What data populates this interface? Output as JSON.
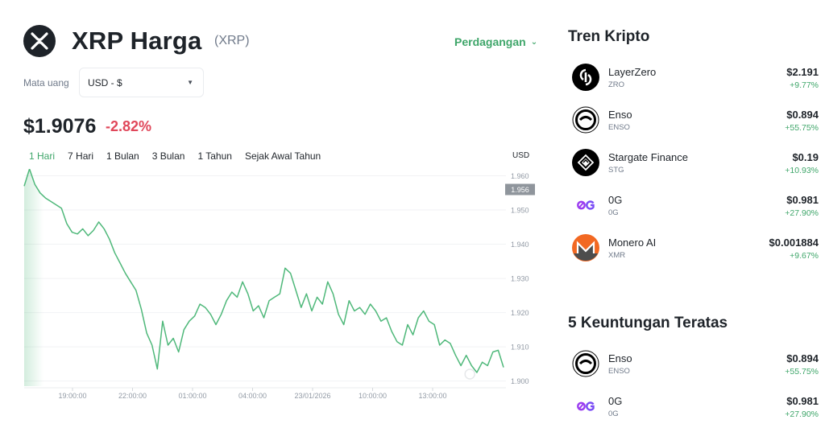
{
  "coin": {
    "name": "XRP Harga",
    "symbol": "(XRP)",
    "trade_label": "Perdagangan",
    "currency_label": "Mata uang",
    "currency_value": "USD - $",
    "price": "$1.9076",
    "change": "-2.82%"
  },
  "tabs": [
    "1 Hari",
    "7 Hari",
    "1 Bulan",
    "3 Bulan",
    "1 Tahun",
    "Sejak Awal Tahun"
  ],
  "active_tab": 0,
  "chart_unit": "USD",
  "chart_data": {
    "type": "line",
    "title": "",
    "xlabel": "",
    "ylabel": "",
    "x_ticks": [
      "19:00:00",
      "22:00:00",
      "01:00:00",
      "04:00:00",
      "23/01/2026",
      "10:00:00",
      "13:00:00"
    ],
    "y_ticks": [
      1.96,
      1.95,
      1.94,
      1.93,
      1.92,
      1.91,
      1.9
    ],
    "y_tick_labels": [
      "1.960",
      "1.950",
      "1.940",
      "1.930",
      "1.920",
      "1.910",
      "1.900"
    ],
    "ylim": [
      1.8985,
      1.962
    ],
    "current_value_label": "1.956",
    "current_value": 1.956,
    "grid": true,
    "line_color": "#4fb87a",
    "series": [
      {
        "values": [
          1.957,
          1.962,
          1.9575,
          1.955,
          1.9535,
          1.9525,
          1.9515,
          1.9505,
          1.946,
          1.9435,
          1.943,
          1.9445,
          1.9425,
          1.944,
          1.9465,
          1.9445,
          1.9415,
          1.9375,
          1.9345,
          1.9315,
          1.929,
          1.9265,
          1.921,
          1.914,
          1.9105,
          1.9035,
          1.9175,
          1.9105,
          1.9125,
          1.9085,
          1.915,
          1.9175,
          1.919,
          1.9225,
          1.9215,
          1.9195,
          1.9165,
          1.9195,
          1.9235,
          1.926,
          1.9245,
          1.929,
          1.9255,
          1.9205,
          1.922,
          1.9185,
          1.9235,
          1.9245,
          1.9255,
          1.933,
          1.9315,
          1.9265,
          1.9215,
          1.9255,
          1.9205,
          1.9245,
          1.9225,
          1.929,
          1.9255,
          1.9195,
          1.9165,
          1.9235,
          1.9205,
          1.9215,
          1.9195,
          1.9225,
          1.9205,
          1.9175,
          1.9185,
          1.9145,
          1.9115,
          1.9105,
          1.9165,
          1.9135,
          1.9185,
          1.9205,
          1.9175,
          1.9165,
          1.9105,
          1.912,
          1.911,
          1.9075,
          1.9045,
          1.9075,
          1.9045,
          1.9025,
          1.9055,
          1.9045,
          1.9085,
          1.909,
          1.904
        ]
      }
    ]
  },
  "trending": {
    "title": "Tren Kripto",
    "items": [
      {
        "name": "LayerZero",
        "symbol": "ZRO",
        "price": "$2.191",
        "change": "+9.77%",
        "icon": "layerzero-icon"
      },
      {
        "name": "Enso",
        "symbol": "ENSO",
        "price": "$0.894",
        "change": "+55.75%",
        "icon": "enso-icon"
      },
      {
        "name": "Stargate Finance",
        "symbol": "STG",
        "price": "$0.19",
        "change": "+10.93%",
        "icon": "stargate-icon"
      },
      {
        "name": "0G",
        "symbol": "0G",
        "price": "$0.981",
        "change": "+27.90%",
        "icon": "zerog-icon"
      },
      {
        "name": "Monero AI",
        "symbol": "XMR",
        "price": "$0.001884",
        "change": "+9.67%",
        "icon": "monero-icon"
      }
    ]
  },
  "gainers": {
    "title": "5 Keuntungan Teratas",
    "items": [
      {
        "name": "Enso",
        "symbol": "ENSO",
        "price": "$0.894",
        "change": "+55.75%",
        "icon": "enso-icon"
      },
      {
        "name": "0G",
        "symbol": "0G",
        "price": "$0.981",
        "change": "+27.90%",
        "icon": "zerog-icon"
      }
    ]
  }
}
